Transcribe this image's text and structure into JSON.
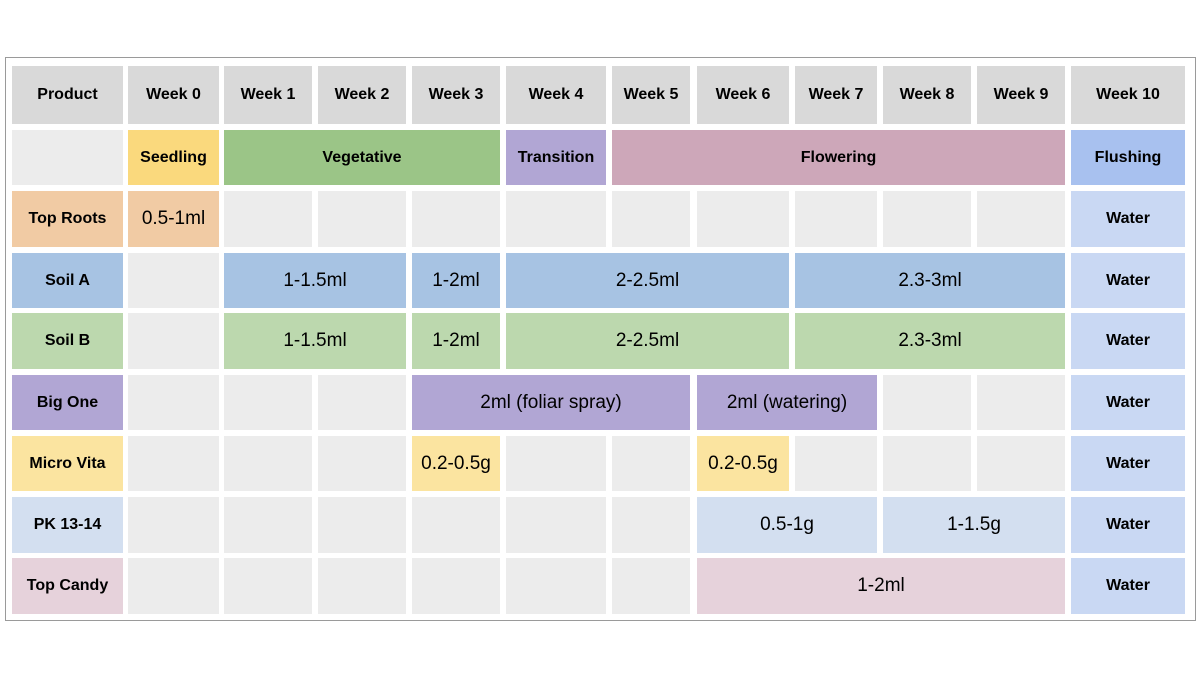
{
  "table": {
    "header": [
      "Product",
      "Week 0",
      "Week 1",
      "Week 2",
      "Week 3",
      "Week 4",
      "Week 5",
      "Week 6",
      "Week 7",
      "Week 8",
      "Week 9",
      "Week 10"
    ],
    "stages": [
      "Seedling",
      "Vegetative",
      "Transition",
      "Flowering",
      "Flushing"
    ],
    "rows": [
      {
        "product": "Top Roots",
        "cells": [
          "0.5-1ml",
          "Water"
        ]
      },
      {
        "product": "Soil A",
        "cells": [
          "1-1.5ml",
          "1-2ml",
          "2-2.5ml",
          "2.3-3ml",
          "Water"
        ]
      },
      {
        "product": "Soil B",
        "cells": [
          "1-1.5ml",
          "1-2ml",
          "2-2.5ml",
          "2.3-3ml",
          "Water"
        ]
      },
      {
        "product": "Big One",
        "cells": [
          "2ml (foliar spray)",
          "2ml (watering)",
          "Water"
        ]
      },
      {
        "product": "Micro Vita",
        "cells": [
          "0.2-0.5g",
          "0.2-0.5g",
          "Water"
        ]
      },
      {
        "product": "PK 13-14",
        "cells": [
          "0.5-1g",
          "1-1.5g",
          "Water"
        ]
      },
      {
        "product": "Top Candy",
        "cells": [
          "1-2ml",
          "Water"
        ]
      }
    ]
  }
}
